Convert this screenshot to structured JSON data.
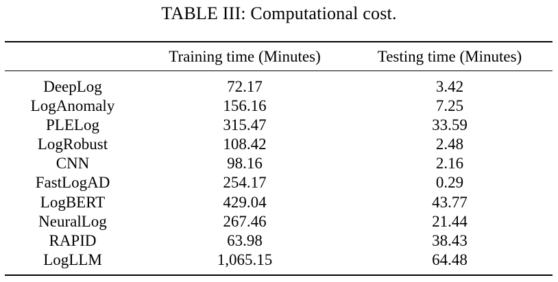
{
  "caption": "TABLE III: Computational cost.",
  "columns": {
    "model": "",
    "training": "Training time (Minutes)",
    "testing": "Testing time (Minutes)"
  },
  "rows": [
    {
      "model": "DeepLog",
      "training": "72.17",
      "testing": "3.42"
    },
    {
      "model": "LogAnomaly",
      "training": "156.16",
      "testing": "7.25"
    },
    {
      "model": "PLELog",
      "training": "315.47",
      "testing": "33.59"
    },
    {
      "model": "LogRobust",
      "training": "108.42",
      "testing": "2.48"
    },
    {
      "model": "CNN",
      "training": "98.16",
      "testing": "2.16"
    },
    {
      "model": "FastLogAD",
      "training": "254.17",
      "testing": "0.29"
    },
    {
      "model": "LogBERT",
      "training": "429.04",
      "testing": "43.77"
    },
    {
      "model": "NeuralLog",
      "training": "267.46",
      "testing": "21.44"
    },
    {
      "model": "RAPID",
      "training": "63.98",
      "testing": "38.43"
    },
    {
      "model": "LogLLM",
      "training": "1,065.15",
      "testing": "64.48"
    }
  ]
}
